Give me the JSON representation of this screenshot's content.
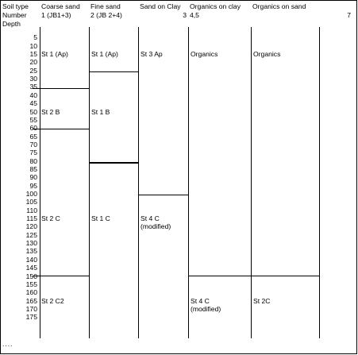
{
  "header": {
    "row_labels": [
      "Soil type",
      "Number",
      "Depth"
    ],
    "columns": [
      {
        "type": "Coarse sand",
        "number": "1 (JB1+3)",
        "number_right": ""
      },
      {
        "type": "Fine sand",
        "number": "2 (JB 2+4)",
        "number_right": ""
      },
      {
        "type": "Sand on Clay",
        "number": "",
        "number_right": "3"
      },
      {
        "type": "Organics on clay",
        "number": "4,5",
        "number_right": ""
      },
      {
        "type": "Organics on sand",
        "number": "",
        "number_right": "7"
      }
    ]
  },
  "depths": [
    "5",
    "10",
    "15",
    "20",
    "25",
    "30",
    "35",
    "40",
    "45",
    "50",
    "55",
    "60",
    "65",
    "70",
    "75",
    "80",
    "85",
    "90",
    "95",
    "100",
    "105",
    "110",
    "115",
    "120",
    "125",
    "130",
    "135",
    "140",
    "145",
    "150",
    "155",
    "160",
    "165",
    "170",
    "175"
  ],
  "cells": [
    {
      "col": 0,
      "depth": 15,
      "text": [
        "St 1 (Ap)"
      ]
    },
    {
      "col": 0,
      "depth": 50,
      "text": [
        "St 2 B"
      ]
    },
    {
      "col": 0,
      "depth": 115,
      "text": [
        "St 2 C"
      ]
    },
    {
      "col": 0,
      "depth": 165,
      "text": [
        "St 2 C2"
      ]
    },
    {
      "col": 1,
      "depth": 15,
      "text": [
        "St 1 (Ap)"
      ]
    },
    {
      "col": 1,
      "depth": 50,
      "text": [
        "St 1 B"
      ]
    },
    {
      "col": 1,
      "depth": 115,
      "text": [
        "St 1 C"
      ]
    },
    {
      "col": 2,
      "depth": 15,
      "text": [
        "St 3 Ap"
      ]
    },
    {
      "col": 2,
      "depth": 115,
      "text": [
        "St 4 C",
        "(modified)"
      ]
    },
    {
      "col": 3,
      "depth": 15,
      "text": [
        "Organics"
      ]
    },
    {
      "col": 3,
      "depth": 165,
      "text": [
        "St 4 C",
        "(modified)"
      ]
    },
    {
      "col": 4,
      "depth": 15,
      "text": [
        "Organics"
      ]
    },
    {
      "col": 4,
      "depth": 165,
      "text": [
        "St 2C"
      ]
    }
  ],
  "horizons": [
    {
      "col": 0,
      "depths": [
        36,
        61,
        150
      ]
    },
    {
      "col": 1,
      "depths": [
        26,
        81,
        81.6
      ]
    },
    {
      "col": 2,
      "depths": [
        101
      ]
    },
    {
      "col": 3,
      "depths": [
        150
      ]
    },
    {
      "col": 4,
      "depths": [
        150
      ]
    }
  ],
  "footer": "...."
}
